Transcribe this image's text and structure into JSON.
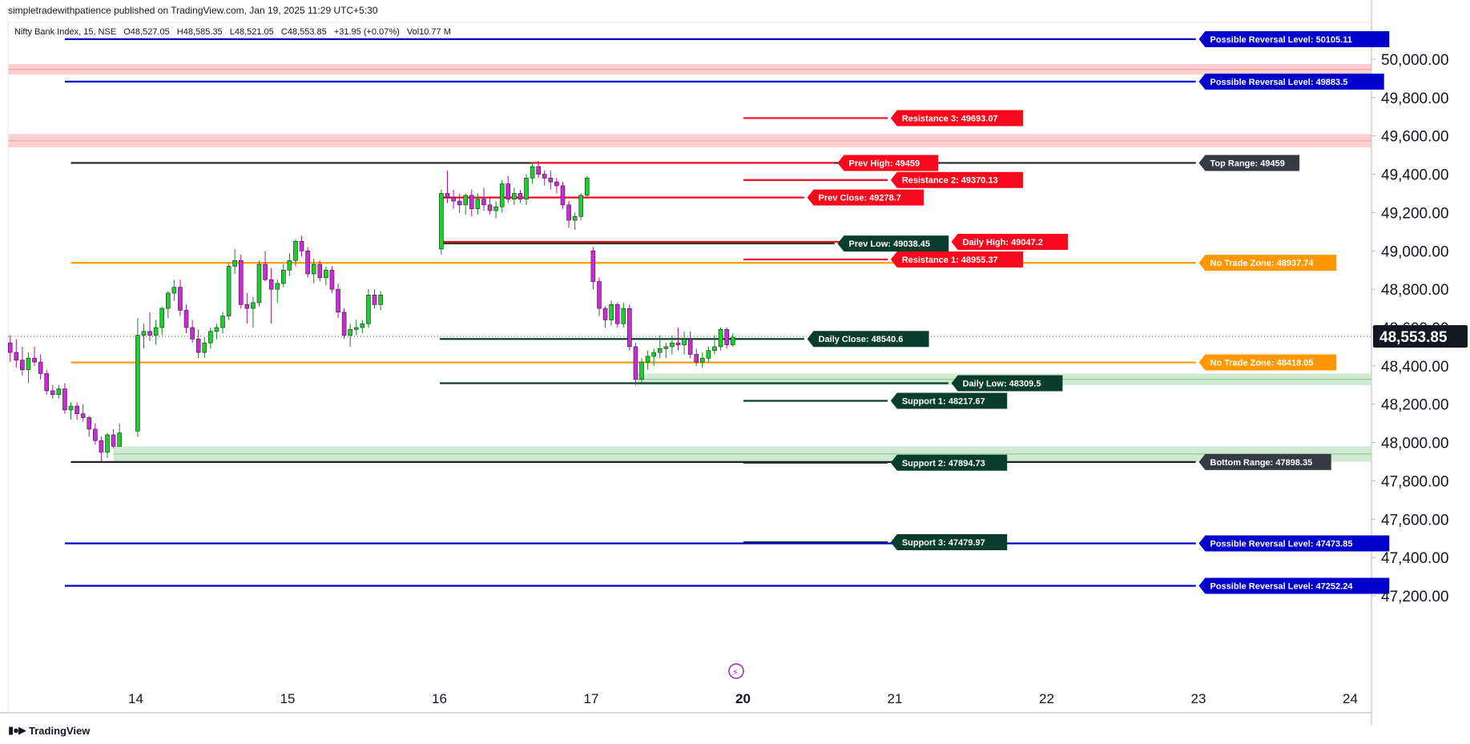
{
  "header": {
    "publisher": "simpletradewithpatience published on TradingView.com, Jan 19, 2025 11:29 UTC+5:30",
    "symbol": "Nifty Bank Index, 15, NSE",
    "open": "O48,527.05",
    "high": "H48,585.35",
    "low": "L48,521.05",
    "close": "C48,553.85",
    "change": "+31.95 (+0.07%)",
    "volume": "Vol10.77 M"
  },
  "footer": {
    "brand": "TradingView",
    "logo_icon": "tradingview-logo-icon"
  },
  "colors": {
    "blue": "#0000cc",
    "red": "#f7081c",
    "orange": "#ff9800",
    "dark_green": "#0b3d2e",
    "black": "#222222",
    "up_candle": "#19d12c",
    "down_candle": "#cc2ad4",
    "zone_red": "#f8c7c9",
    "zone_green": "#c8e6c9"
  },
  "chart_data": {
    "type": "candlestick",
    "y_axis": {
      "min": 47150,
      "max": 50180,
      "ticks": [
        "50,000.00",
        "49,800.00",
        "49,600.00",
        "49,400.00",
        "49,200.00",
        "49,000.00",
        "48,800.00",
        "48,600.00",
        "48,400.00",
        "48,200.00",
        "48,000.00",
        "47,800.00",
        "47,600.00",
        "47,400.00",
        "47,200.00"
      ],
      "tick_values": [
        50000,
        49800,
        49600,
        49400,
        49200,
        49000,
        48800,
        48600,
        48400,
        48200,
        48000,
        47800,
        47600,
        47400,
        47200
      ]
    },
    "x_axis": {
      "labels": [
        "14",
        "15",
        "16",
        "17",
        "20",
        "21",
        "22",
        "23",
        "24"
      ],
      "label_days": [
        1,
        2,
        3,
        4,
        5,
        6,
        7,
        8,
        9
      ],
      "min_day": 0.16,
      "max_day": 9.1
    },
    "last_price": {
      "label": "48,553.85",
      "value": 48553.85
    },
    "zones": [
      {
        "color": "red",
        "low": 49920,
        "high": 49975,
        "from_day": 0.16
      },
      {
        "color": "red",
        "low": 49540,
        "high": 49610,
        "from_day": 0.16
      },
      {
        "color": "green",
        "low": 48300,
        "high": 48360,
        "from_day": 4.3
      },
      {
        "color": "green",
        "low": 47900,
        "high": 47980,
        "from_day": 0.85
      }
    ],
    "levels": [
      {
        "label": "Possible Reversal Level: 50105.11",
        "value": 50105.11,
        "color": "blue",
        "from_day": 0.53,
        "to_day": 7.98,
        "tag_day": 8.0
      },
      {
        "label": "Possible Reversal Level: 49883.5",
        "value": 49883.5,
        "color": "blue",
        "from_day": 0.53,
        "to_day": 7.98,
        "tag_day": 8.0
      },
      {
        "label": "Resistance 3: 49693.07",
        "value": 49693.07,
        "color": "red",
        "from_day": 5.0,
        "to_day": 5.95,
        "tag_day": 5.97
      },
      {
        "label": "Top Range: 49459",
        "value": 49459,
        "color": "black",
        "from_day": 0.57,
        "to_day": 7.98,
        "tag_day": 8.0
      },
      {
        "label": "Prev High: 49459",
        "value": 49459,
        "color": "red",
        "from_day": 3.6,
        "to_day": 5.6,
        "tag_day": 5.62
      },
      {
        "label": "Resistance 2: 49370.13",
        "value": 49370.13,
        "color": "red",
        "from_day": 5.0,
        "to_day": 5.95,
        "tag_day": 5.97
      },
      {
        "label": "Prev Close: 49278.7",
        "value": 49278.7,
        "color": "red",
        "from_day": 3.0,
        "to_day": 5.4,
        "tag_day": 5.42
      },
      {
        "label": "Daily High: 49047.2",
        "value": 49047.2,
        "color": "red",
        "from_day": 3.0,
        "to_day": 6.35,
        "tag_day": 6.37
      },
      {
        "label": "Prev Low: 49038.45",
        "value": 49038.45,
        "color": "dark_green",
        "from_day": 3.0,
        "to_day": 5.6,
        "tag_day": 5.62
      },
      {
        "label": "Resistance 1: 48955.37",
        "value": 48955.37,
        "color": "red",
        "from_day": 5.0,
        "to_day": 5.95,
        "tag_day": 5.97
      },
      {
        "label": "No Trade Zone: 48937.74",
        "value": 48937.74,
        "color": "orange",
        "from_day": 0.57,
        "to_day": 7.98,
        "tag_day": 8.0
      },
      {
        "label": "Daily Close: 48540.6",
        "value": 48540.6,
        "color": "dark_green",
        "from_day": 3.0,
        "to_day": 5.4,
        "tag_day": 5.42
      },
      {
        "label": "No Trade Zone: 48418.05",
        "value": 48418.05,
        "color": "orange",
        "from_day": 0.57,
        "to_day": 7.98,
        "tag_day": 8.0
      },
      {
        "label": "Daily Low: 48309.5",
        "value": 48309.5,
        "color": "dark_green",
        "from_day": 3.0,
        "to_day": 6.35,
        "tag_day": 6.37
      },
      {
        "label": "Support 1: 48217.67",
        "value": 48217.67,
        "color": "dark_green",
        "from_day": 5.0,
        "to_day": 5.95,
        "tag_day": 5.97
      },
      {
        "label": "Support 2: 47894.73",
        "value": 47894.73,
        "color": "dark_green",
        "from_day": 5.0,
        "to_day": 5.95,
        "tag_day": 5.97
      },
      {
        "label": "Bottom Range: 47898.35",
        "value": 47898.35,
        "color": "black",
        "from_day": 0.57,
        "to_day": 7.98,
        "tag_day": 8.0
      },
      {
        "label": "Support 3: 47479.97",
        "value": 47479.97,
        "color": "dark_green",
        "from_day": 5.0,
        "to_day": 5.95,
        "tag_day": 5.97
      },
      {
        "label": "Possible Reversal Level: 47473.85",
        "value": 47473.85,
        "color": "blue",
        "from_day": 0.53,
        "to_day": 7.98,
        "tag_day": 8.0
      },
      {
        "label": "Possible Reversal Level: 47252.24",
        "value": 47252.24,
        "color": "blue",
        "from_day": 0.53,
        "to_day": 7.98,
        "tag_day": 8.0
      }
    ],
    "candles": [
      [
        0.17,
        48520,
        48560,
        48420,
        48470
      ],
      [
        0.21,
        48470,
        48540,
        48390,
        48430
      ],
      [
        0.25,
        48430,
        48500,
        48350,
        48380
      ],
      [
        0.29,
        48380,
        48470,
        48310,
        48440
      ],
      [
        0.33,
        48440,
        48500,
        48400,
        48420
      ],
      [
        0.37,
        48420,
        48460,
        48330,
        48360
      ],
      [
        0.41,
        48360,
        48380,
        48250,
        48270
      ],
      [
        0.45,
        48270,
        48300,
        48230,
        48250
      ],
      [
        0.49,
        48250,
        48300,
        48230,
        48280
      ],
      [
        0.53,
        48280,
        48310,
        48150,
        48170
      ],
      [
        0.57,
        48170,
        48210,
        48120,
        48190
      ],
      [
        0.61,
        48190,
        48210,
        48120,
        48150
      ],
      [
        0.65,
        48150,
        48200,
        48110,
        48130
      ],
      [
        0.69,
        48130,
        48140,
        48030,
        48070
      ],
      [
        0.73,
        48070,
        48100,
        47990,
        48010
      ],
      [
        0.77,
        48010,
        48030,
        47900,
        47950
      ],
      [
        0.81,
        47950,
        48050,
        47920,
        48040
      ],
      [
        0.85,
        48040,
        48070,
        47970,
        47980
      ],
      [
        0.89,
        47980,
        48100,
        47980,
        48050
      ],
      [
        1.01,
        48060,
        48650,
        48030,
        48560
      ],
      [
        1.05,
        48560,
        48620,
        48490,
        48580
      ],
      [
        1.09,
        48580,
        48680,
        48530,
        48560
      ],
      [
        1.13,
        48560,
        48640,
        48510,
        48600
      ],
      [
        1.17,
        48600,
        48710,
        48560,
        48700
      ],
      [
        1.21,
        48700,
        48790,
        48650,
        48780
      ],
      [
        1.25,
        48780,
        48850,
        48740,
        48810
      ],
      [
        1.29,
        48810,
        48850,
        48660,
        48690
      ],
      [
        1.33,
        48690,
        48720,
        48570,
        48600
      ],
      [
        1.37,
        48600,
        48640,
        48520,
        48540
      ],
      [
        1.41,
        48540,
        48590,
        48440,
        48470
      ],
      [
        1.45,
        48470,
        48550,
        48440,
        48520
      ],
      [
        1.49,
        48520,
        48600,
        48490,
        48580
      ],
      [
        1.53,
        48580,
        48620,
        48540,
        48600
      ],
      [
        1.57,
        48600,
        48680,
        48570,
        48660
      ],
      [
        1.61,
        48660,
        48940,
        48640,
        48920
      ],
      [
        1.65,
        48920,
        49010,
        48880,
        48950
      ],
      [
        1.69,
        48950,
        48980,
        48700,
        48720
      ],
      [
        1.73,
        48720,
        48780,
        48620,
        48700
      ],
      [
        1.77,
        48700,
        48760,
        48600,
        48730
      ],
      [
        1.81,
        48730,
        48950,
        48710,
        48930
      ],
      [
        1.85,
        48930,
        49000,
        48840,
        48850
      ],
      [
        1.89,
        48850,
        48910,
        48620,
        48800
      ],
      [
        1.93,
        48800,
        48850,
        48730,
        48830
      ],
      [
        1.97,
        48830,
        48930,
        48810,
        48900
      ],
      [
        2.01,
        48900,
        48990,
        48870,
        48950
      ],
      [
        2.05,
        48950,
        49060,
        48920,
        49050
      ],
      [
        2.09,
        49050,
        49080,
        48970,
        49000
      ],
      [
        2.13,
        49000,
        49020,
        48860,
        48880
      ],
      [
        2.17,
        48880,
        48960,
        48830,
        48930
      ],
      [
        2.21,
        48930,
        48950,
        48840,
        48860
      ],
      [
        2.25,
        48860,
        48920,
        48820,
        48900
      ],
      [
        2.29,
        48900,
        48920,
        48780,
        48800
      ],
      [
        2.33,
        48800,
        48830,
        48650,
        48680
      ],
      [
        2.37,
        48680,
        48700,
        48540,
        48560
      ],
      [
        2.41,
        48560,
        48620,
        48500,
        48590
      ],
      [
        2.45,
        48590,
        48640,
        48560,
        48600
      ],
      [
        2.49,
        48600,
        48640,
        48570,
        48620
      ],
      [
        2.53,
        48620,
        48800,
        48600,
        48770
      ],
      [
        2.57,
        48770,
        48800,
        48700,
        48720
      ],
      [
        2.61,
        48720,
        48790,
        48690,
        48770
      ],
      [
        3.01,
        49010,
        49320,
        48980,
        49300
      ],
      [
        3.05,
        49300,
        49420,
        49250,
        49280
      ],
      [
        3.09,
        49280,
        49320,
        49220,
        49260
      ],
      [
        3.13,
        49260,
        49300,
        49200,
        49240
      ],
      [
        3.17,
        49240,
        49300,
        49190,
        49290
      ],
      [
        3.21,
        49290,
        49320,
        49180,
        49220
      ],
      [
        3.25,
        49220,
        49300,
        49190,
        49270
      ],
      [
        3.29,
        49270,
        49330,
        49210,
        49240
      ],
      [
        3.33,
        49240,
        49280,
        49190,
        49210
      ],
      [
        3.37,
        49210,
        49260,
        49170,
        49230
      ],
      [
        3.41,
        49230,
        49370,
        49200,
        49350
      ],
      [
        3.45,
        49350,
        49390,
        49250,
        49270
      ],
      [
        3.49,
        49270,
        49330,
        49240,
        49300
      ],
      [
        3.53,
        49300,
        49320,
        49250,
        49270
      ],
      [
        3.57,
        49270,
        49400,
        49240,
        49380
      ],
      [
        3.61,
        49380,
        49460,
        49350,
        49440
      ],
      [
        3.65,
        49440,
        49470,
        49380,
        49400
      ],
      [
        3.69,
        49400,
        49420,
        49340,
        49380
      ],
      [
        3.73,
        49380,
        49420,
        49320,
        49360
      ],
      [
        3.77,
        49360,
        49380,
        49300,
        49340
      ],
      [
        3.81,
        49340,
        49360,
        49220,
        49240
      ],
      [
        3.85,
        49240,
        49260,
        49120,
        49160
      ],
      [
        3.89,
        49160,
        49200,
        49110,
        49180
      ],
      [
        3.93,
        49180,
        49300,
        49160,
        49290
      ],
      [
        3.97,
        49290,
        49390,
        49280,
        49380
      ],
      [
        4.01,
        49000,
        49020,
        48800,
        48840
      ],
      [
        4.05,
        48840,
        48860,
        48660,
        48700
      ],
      [
        4.09,
        48700,
        48710,
        48600,
        48640
      ],
      [
        4.13,
        48640,
        48740,
        48610,
        48720
      ],
      [
        4.17,
        48720,
        48730,
        48600,
        48620
      ],
      [
        4.21,
        48620,
        48730,
        48600,
        48700
      ],
      [
        4.25,
        48700,
        48720,
        48480,
        48500
      ],
      [
        4.29,
        48500,
        48520,
        48300,
        48330
      ],
      [
        4.33,
        48330,
        48440,
        48310,
        48420
      ],
      [
        4.37,
        48420,
        48480,
        48380,
        48450
      ],
      [
        4.41,
        48450,
        48490,
        48400,
        48470
      ],
      [
        4.45,
        48470,
        48560,
        48440,
        48490
      ],
      [
        4.49,
        48490,
        48520,
        48440,
        48500
      ],
      [
        4.53,
        48500,
        48560,
        48460,
        48520
      ],
      [
        4.57,
        48520,
        48600,
        48480,
        48510
      ],
      [
        4.61,
        48510,
        48580,
        48460,
        48540
      ],
      [
        4.65,
        48540,
        48580,
        48440,
        48460
      ],
      [
        4.69,
        48460,
        48490,
        48400,
        48420
      ],
      [
        4.73,
        48420,
        48470,
        48390,
        48440
      ],
      [
        4.77,
        48440,
        48500,
        48420,
        48480
      ],
      [
        4.81,
        48480,
        48560,
        48460,
        48500
      ],
      [
        4.85,
        48500,
        48600,
        48480,
        48590
      ],
      [
        4.89,
        48590,
        48600,
        48490,
        48510
      ],
      [
        4.93,
        48510,
        48570,
        48500,
        48550
      ]
    ]
  }
}
